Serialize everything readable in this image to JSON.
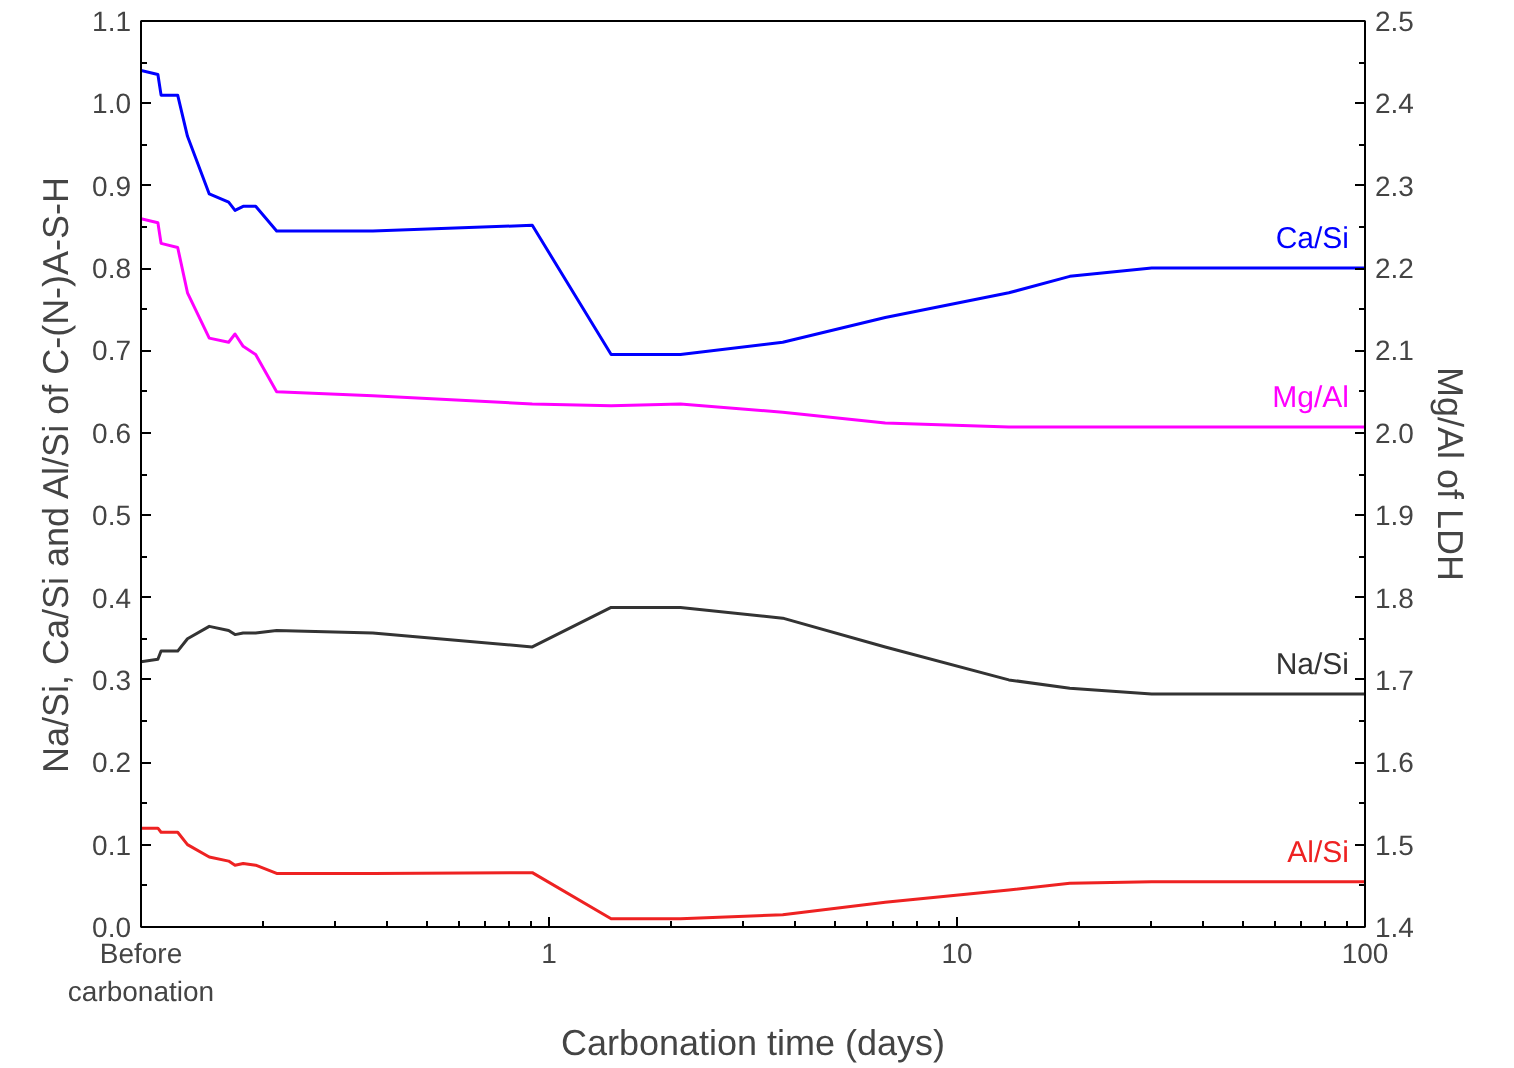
{
  "chart_data": {
    "type": "line",
    "xlabel": "Carbonation time (days)",
    "ylabel": "Na/Si, Ca/Si and Al/Si of C-(N-)A-S-H",
    "y2label": "Mg/Al of LDH",
    "log": "x",
    "grid": false,
    "legend": false,
    "marker": "none",
    "line_style": "solid",
    "x": [
      0.1,
      0.11,
      0.112,
      0.123,
      0.13,
      0.147,
      0.164,
      0.17,
      0.178,
      0.191,
      0.215,
      0.37,
      0.91,
      1.42,
      2.1,
      3.74,
      6.67,
      13.4,
      18.9,
      30,
      100
    ],
    "xlim": [
      0.1,
      100
    ],
    "xticks": [
      {
        "value": 0.1,
        "label": "Before\ncarbonation"
      },
      1,
      10,
      100
    ],
    "ylim": [
      0,
      1.1
    ],
    "yticks": [
      {
        "value": 0,
        "label": "0.0"
      },
      0.1,
      0.2,
      0.3,
      0.4,
      0.5,
      0.6,
      0.7,
      0.8,
      0.9,
      {
        "value": 1,
        "label": "1.0"
      },
      1.1
    ],
    "y2lim": [
      1.4,
      2.5
    ],
    "y2ticks": [
      1.4,
      1.5,
      1.6,
      1.7,
      1.8,
      1.9,
      {
        "value": 2,
        "label": "2.0"
      },
      2.1,
      2.2,
      2.3,
      2.4,
      2.5
    ],
    "series": [
      {
        "name": "Ca/Si",
        "color": "#0000ff",
        "values": [
          1.04,
          1.035,
          1.01,
          1.01,
          0.96,
          0.89,
          0.88,
          0.87,
          0.875,
          0.875,
          0.845,
          0.845,
          0.852,
          0.695,
          0.695,
          0.71,
          0.74,
          0.77,
          0.79,
          0.8,
          0.8
        ]
      },
      {
        "name": "Mg/Al",
        "color": "#ff00ff",
        "axis": "y2",
        "values": [
          2.26,
          2.255,
          2.23,
          2.225,
          2.17,
          2.115,
          2.11,
          2.12,
          2.105,
          2.095,
          2.05,
          2.045,
          2.035,
          2.033,
          2.035,
          2.025,
          2.012,
          2.007,
          2.007,
          2.007,
          2.007
        ]
      },
      {
        "name": "Na/Si",
        "color": "#333333",
        "values": [
          0.322,
          0.325,
          0.335,
          0.335,
          0.35,
          0.365,
          0.36,
          0.355,
          0.357,
          0.357,
          0.36,
          0.357,
          0.34,
          0.388,
          0.388,
          0.375,
          0.34,
          0.3,
          0.29,
          0.283,
          0.283
        ]
      },
      {
        "name": "Al/Si",
        "color": "#ee2222",
        "values": [
          0.12,
          0.12,
          0.115,
          0.115,
          0.1,
          0.085,
          0.08,
          0.075,
          0.077,
          0.075,
          0.065,
          0.065,
          0.066,
          0.01,
          0.01,
          0.015,
          0.03,
          0.045,
          0.053,
          0.055,
          0.055
        ]
      }
    ]
  }
}
